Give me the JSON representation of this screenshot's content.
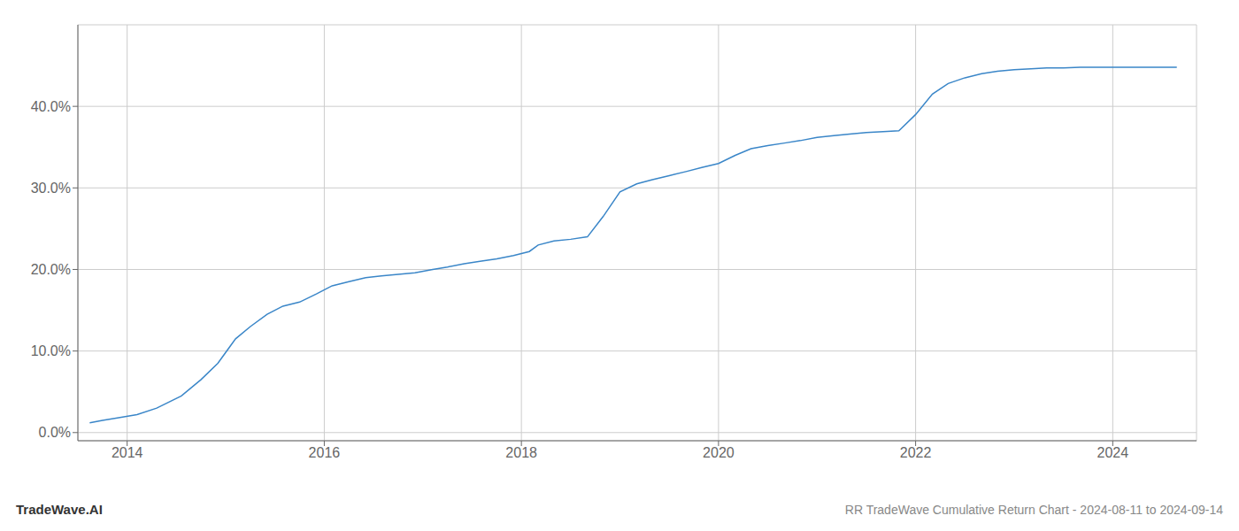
{
  "chart_data": {
    "type": "line",
    "title": "RR TradeWave Cumulative Return Chart - 2024-08-11 to 2024-09-14",
    "annotations": [
      "TradeWave.AI"
    ],
    "color": "#3a86c8",
    "grid": true,
    "x": [
      2013.62,
      2013.75,
      2013.9,
      2014.1,
      2014.3,
      2014.55,
      2014.75,
      2014.92,
      2015.1,
      2015.25,
      2015.42,
      2015.58,
      2015.75,
      2015.92,
      2016.08,
      2016.25,
      2016.42,
      2016.58,
      2016.75,
      2016.92,
      2017.1,
      2017.25,
      2017.42,
      2017.58,
      2017.75,
      2017.92,
      2018.08,
      2018.17,
      2018.33,
      2018.5,
      2018.67,
      2018.83,
      2019.0,
      2019.17,
      2019.33,
      2019.5,
      2019.67,
      2019.83,
      2020.0,
      2020.17,
      2020.33,
      2020.5,
      2020.67,
      2020.83,
      2021.0,
      2021.17,
      2021.33,
      2021.5,
      2021.67,
      2021.83,
      2022.0,
      2022.17,
      2022.33,
      2022.5,
      2022.67,
      2022.83,
      2023.0,
      2023.17,
      2023.33,
      2023.5,
      2023.67,
      2024.0,
      2024.5,
      2024.65
    ],
    "values": [
      0.012,
      0.015,
      0.018,
      0.022,
      0.03,
      0.045,
      0.065,
      0.085,
      0.115,
      0.13,
      0.145,
      0.155,
      0.16,
      0.17,
      0.18,
      0.185,
      0.19,
      0.192,
      0.194,
      0.196,
      0.2,
      0.203,
      0.207,
      0.21,
      0.213,
      0.217,
      0.222,
      0.23,
      0.235,
      0.237,
      0.24,
      0.265,
      0.295,
      0.305,
      0.31,
      0.315,
      0.32,
      0.325,
      0.33,
      0.34,
      0.348,
      0.352,
      0.355,
      0.358,
      0.362,
      0.364,
      0.366,
      0.368,
      0.369,
      0.37,
      0.39,
      0.415,
      0.428,
      0.435,
      0.44,
      0.443,
      0.445,
      0.446,
      0.447,
      0.447,
      0.448,
      0.448,
      0.448,
      0.448
    ],
    "xlim": [
      2013.5,
      2024.85
    ],
    "ylim": [
      -0.01,
      0.5
    ],
    "xticks": [
      2014,
      2016,
      2018,
      2020,
      2022,
      2024
    ],
    "yticks": [
      {
        "value": 0.0,
        "label": "0.0%"
      },
      {
        "value": 0.1,
        "label": "10.0%"
      },
      {
        "value": 0.2,
        "label": "20.0%"
      },
      {
        "value": 0.3,
        "label": "30.0%"
      },
      {
        "value": 0.4,
        "label": "40.0%"
      }
    ]
  }
}
